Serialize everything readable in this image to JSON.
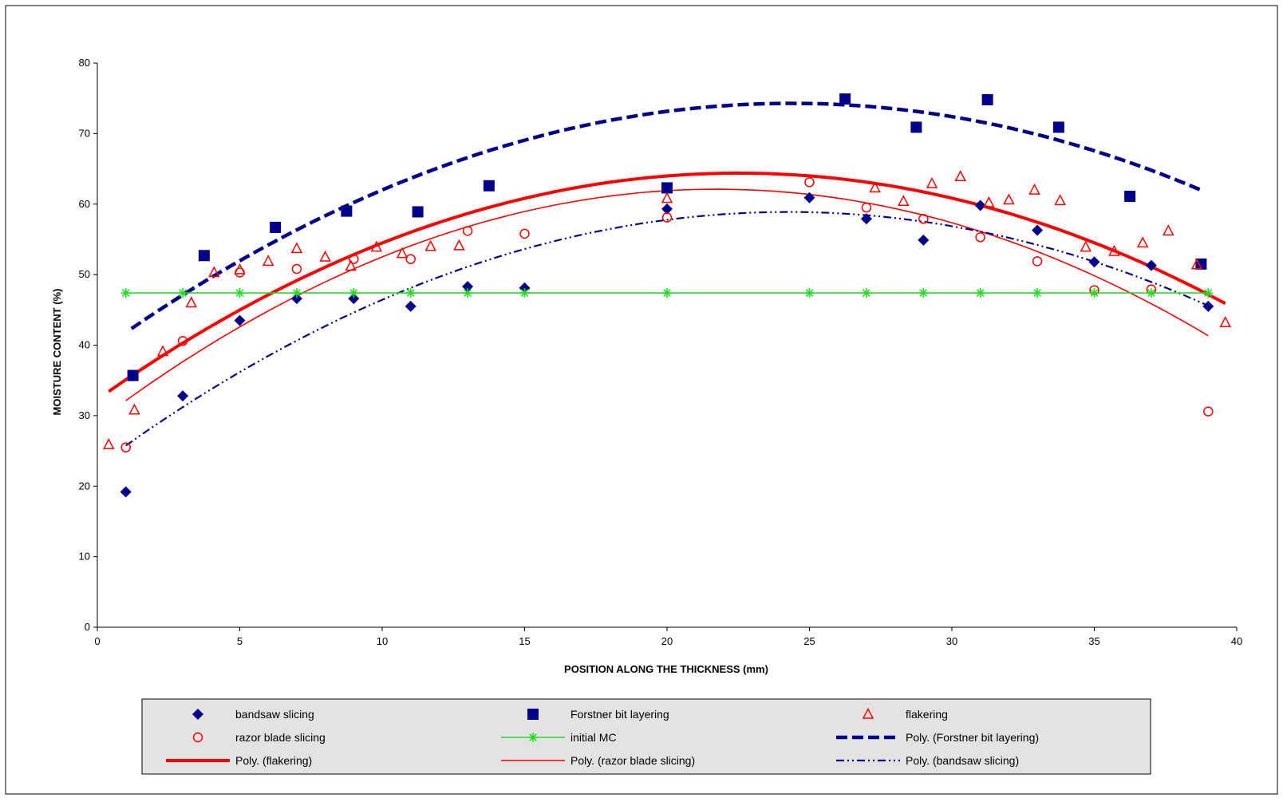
{
  "chart_data": {
    "type": "scatter",
    "xlabel": "POSITION ALONG THE THICKNESS (mm)",
    "ylabel": "MOISTURE CONTENT (%)",
    "xlim": [
      0,
      40
    ],
    "ylim": [
      0,
      80
    ],
    "xticks": [
      0,
      5,
      10,
      15,
      20,
      25,
      30,
      35,
      40
    ],
    "yticks": [
      0,
      10,
      20,
      30,
      40,
      50,
      60,
      70,
      80
    ],
    "grid": false,
    "legend_position": "bottom",
    "plot_background": "#ffffff",
    "legend_background": "#e3e3e3",
    "series": [
      {
        "name": "bandsaw slicing",
        "marker": "diamond",
        "color": "#00008b",
        "points": [
          [
            1,
            19.2
          ],
          [
            3,
            32.8
          ],
          [
            5,
            43.5
          ],
          [
            7,
            46.6
          ],
          [
            9,
            46.6
          ],
          [
            11,
            45.5
          ],
          [
            13,
            48.3
          ],
          [
            15,
            48.1
          ],
          [
            20,
            59.3
          ],
          [
            25,
            60.9
          ],
          [
            27,
            57.9
          ],
          [
            29,
            54.9
          ],
          [
            31,
            59.8
          ],
          [
            33,
            56.3
          ],
          [
            35,
            51.8
          ],
          [
            37,
            51.3
          ],
          [
            39,
            45.5
          ]
        ]
      },
      {
        "name": "Forstner bit layering",
        "marker": "square",
        "color": "#00008b",
        "points": [
          [
            1.25,
            35.7
          ],
          [
            3.75,
            52.7
          ],
          [
            6.25,
            56.7
          ],
          [
            8.75,
            59
          ],
          [
            11.25,
            58.9
          ],
          [
            13.75,
            62.6
          ],
          [
            20,
            62.3
          ],
          [
            26.25,
            74.9
          ],
          [
            28.75,
            70.9
          ],
          [
            31.25,
            74.8
          ],
          [
            33.75,
            70.9
          ],
          [
            36.25,
            61.1
          ],
          [
            38.75,
            51.5
          ]
        ]
      },
      {
        "name": "flakering",
        "marker": "triangle",
        "color": "#ff0000",
        "points": [
          [
            0.4,
            25.9
          ],
          [
            1.3,
            30.8
          ],
          [
            2.3,
            39.1
          ],
          [
            3.3,
            46
          ],
          [
            4.1,
            50.3
          ],
          [
            5,
            50.7
          ],
          [
            6,
            51.9
          ],
          [
            7,
            53.7
          ],
          [
            8,
            52.5
          ],
          [
            8.9,
            51.2
          ],
          [
            9.8,
            53.9
          ],
          [
            10.7,
            53
          ],
          [
            11.7,
            54
          ],
          [
            12.7,
            54.1
          ],
          [
            20,
            60.8
          ],
          [
            27.3,
            62.3
          ],
          [
            28.3,
            60.4
          ],
          [
            29.3,
            62.9
          ],
          [
            30.3,
            63.9
          ],
          [
            31.3,
            60.2
          ],
          [
            32,
            60.6
          ],
          [
            32.9,
            62
          ],
          [
            33.8,
            60.5
          ],
          [
            34.7,
            53.9
          ],
          [
            35.7,
            53.3
          ],
          [
            36.7,
            54.5
          ],
          [
            37.6,
            56.2
          ],
          [
            38.6,
            51.4
          ],
          [
            39.6,
            43.2
          ]
        ]
      },
      {
        "name": "razor blade slicing",
        "marker": "circle",
        "color": "#ff0000",
        "points": [
          [
            1,
            25.5
          ],
          [
            3,
            40.6
          ],
          [
            5,
            50.3
          ],
          [
            7,
            50.8
          ],
          [
            9,
            52.2
          ],
          [
            11,
            52.2
          ],
          [
            13,
            56.2
          ],
          [
            15,
            55.8
          ],
          [
            20,
            58.1
          ],
          [
            25,
            63.1
          ],
          [
            27,
            59.5
          ],
          [
            29,
            57.9
          ],
          [
            31,
            55.3
          ],
          [
            33,
            51.9
          ],
          [
            35,
            47.8
          ],
          [
            37,
            47.9
          ],
          [
            39,
            30.6
          ]
        ]
      },
      {
        "name": "initial MC",
        "marker": "asterisk",
        "color": "#22dd22",
        "line": true,
        "points": [
          [
            1,
            47.4
          ],
          [
            3,
            47.4
          ],
          [
            5,
            47.4
          ],
          [
            7,
            47.4
          ],
          [
            9,
            47.4
          ],
          [
            11,
            47.4
          ],
          [
            13,
            47.4
          ],
          [
            15,
            47.4
          ],
          [
            20,
            47.4
          ],
          [
            25,
            47.4
          ],
          [
            27,
            47.4
          ],
          [
            29,
            47.4
          ],
          [
            31,
            47.4
          ],
          [
            33,
            47.4
          ],
          [
            35,
            47.4
          ],
          [
            37,
            47.4
          ],
          [
            39,
            47.4
          ]
        ]
      }
    ],
    "trendlines": [
      {
        "name": "Poly. (Forstner bit layering)",
        "style": "thick-dash",
        "color": "#00008b",
        "x_range": [
          1.2,
          38.8
        ],
        "coefficients": [
          38.95,
          2.9,
          -0.0595
        ]
      },
      {
        "name": "Poly. (flakering)",
        "style": "thick-solid",
        "color": "#ff0000",
        "x_range": [
          0.4,
          39.6
        ],
        "coefficients": [
          32.31,
          2.85,
          -0.0633
        ]
      },
      {
        "name": "Poly. (razor blade slicing)",
        "style": "thin-solid",
        "color": "#ff0000",
        "x_range": [
          1,
          39
        ],
        "coefficients": [
          29.18,
          3.03,
          -0.0697
        ]
      },
      {
        "name": "Poly. (bandsaw slicing)",
        "style": "dash-dot-dot",
        "color": "#00008b",
        "x_range": [
          1,
          39
        ],
        "coefficients": [
          22.85,
          2.97,
          -0.0612
        ]
      }
    ],
    "legend_entries": [
      "bandsaw slicing",
      "Forstner bit layering",
      "flakering",
      "razor blade slicing",
      "initial MC",
      "Poly. (Forstner bit layering)",
      "Poly. (flakering)",
      "Poly. (razor blade slicing)",
      "Poly. (bandsaw slicing)"
    ]
  }
}
